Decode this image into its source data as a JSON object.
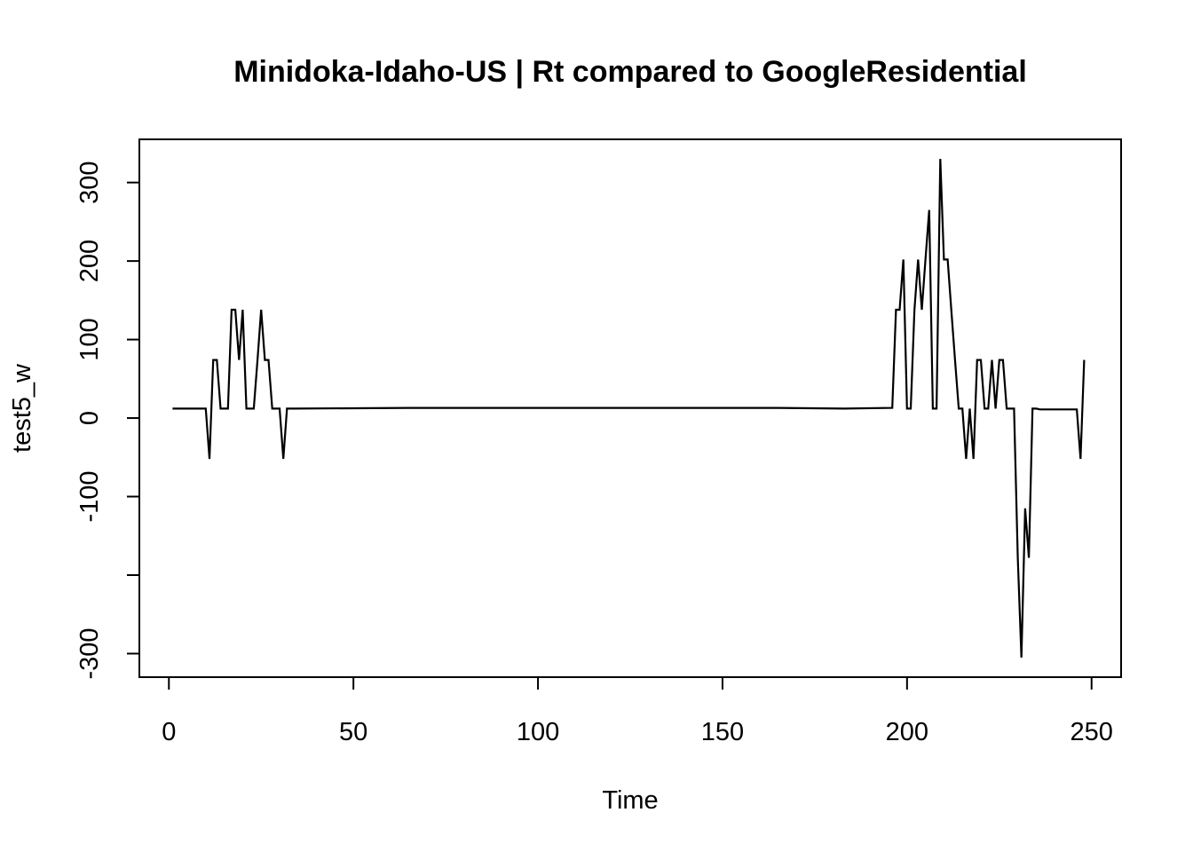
{
  "chart_data": {
    "type": "line",
    "title": "Minidoka-Idaho-US | Rt compared to GoogleResidential",
    "xlabel": "Time",
    "ylabel": "test5_w",
    "xlim": [
      -8,
      258
    ],
    "ylim": [
      -330,
      355
    ],
    "xticks": [
      0,
      50,
      100,
      150,
      200,
      250
    ],
    "yticks": [
      -300,
      -200,
      -100,
      0,
      100,
      200,
      300
    ],
    "ytick_labels": [
      "-300",
      "",
      "-100",
      "0",
      "100",
      "200",
      "300"
    ],
    "grid": false,
    "legend": "none",
    "line_color": "#000000",
    "series": [
      {
        "x": [
          1,
          2,
          3,
          4,
          5,
          6,
          7,
          8,
          9,
          10,
          11,
          12,
          13,
          14,
          15,
          16,
          17,
          18,
          19,
          20,
          21,
          22,
          23,
          24,
          25,
          26,
          27,
          28,
          29,
          30,
          31,
          32,
          33,
          34,
          65,
          165,
          183,
          196,
          197,
          198,
          199,
          200,
          201,
          202,
          203,
          204,
          205,
          206,
          207,
          208,
          209,
          210,
          211,
          212,
          213,
          214,
          215,
          216,
          217,
          218,
          219,
          220,
          221,
          222,
          223,
          224,
          225,
          226,
          227,
          228,
          229,
          230,
          231,
          232,
          233,
          234,
          235,
          236,
          245,
          246,
          247,
          248
        ],
        "y": [
          12,
          12,
          12,
          12,
          12,
          12,
          12,
          12,
          12,
          12,
          -52,
          74,
          74,
          12,
          12,
          12,
          138,
          138,
          74,
          138,
          12,
          12,
          12,
          74,
          138,
          74,
          74,
          12,
          12,
          12,
          -52,
          12,
          12,
          12,
          13,
          13,
          12,
          13,
          138,
          138,
          202,
          12,
          12,
          138,
          202,
          138,
          202,
          265,
          12,
          12,
          330,
          202,
          202,
          138,
          74,
          12,
          12,
          -52,
          12,
          -52,
          74,
          74,
          12,
          12,
          74,
          12,
          74,
          74,
          12,
          12,
          12,
          -178,
          -305,
          -115,
          -178,
          12,
          12,
          11,
          11,
          11,
          -52,
          74
        ]
      }
    ]
  }
}
